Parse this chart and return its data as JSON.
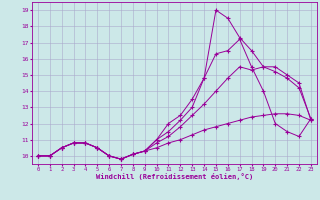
{
  "xlabel": "Windchill (Refroidissement éolien,°C)",
  "bg_color": "#cce8e8",
  "grid_color": "#aaaacc",
  "line_color": "#990099",
  "xlim": [
    -0.5,
    23.5
  ],
  "ylim": [
    9.5,
    19.5
  ],
  "yticks": [
    10,
    11,
    12,
    13,
    14,
    15,
    16,
    17,
    18,
    19
  ],
  "xticks": [
    0,
    1,
    2,
    3,
    4,
    5,
    6,
    7,
    8,
    9,
    10,
    11,
    12,
    13,
    14,
    15,
    16,
    17,
    18,
    19,
    20,
    21,
    22,
    23
  ],
  "lines": [
    {
      "x": [
        0,
        1,
        2,
        3,
        4,
        5,
        6,
        7,
        8,
        9,
        10,
        11,
        12,
        13,
        14,
        15,
        16,
        17,
        18,
        19,
        20,
        21,
        22,
        23
      ],
      "y": [
        10.0,
        10.0,
        10.5,
        10.8,
        10.8,
        10.5,
        10.0,
        9.8,
        10.1,
        10.3,
        11.0,
        11.5,
        12.2,
        13.0,
        14.8,
        19.0,
        18.5,
        17.3,
        16.5,
        15.5,
        15.2,
        14.8,
        14.2,
        12.3
      ]
    },
    {
      "x": [
        0,
        1,
        2,
        3,
        4,
        5,
        6,
        7,
        8,
        9,
        10,
        11,
        12,
        13,
        14,
        15,
        16,
        17,
        18,
        19,
        20,
        21,
        22,
        23
      ],
      "y": [
        10.0,
        10.0,
        10.5,
        10.8,
        10.8,
        10.5,
        10.0,
        9.8,
        10.1,
        10.3,
        11.0,
        12.0,
        12.5,
        13.5,
        14.8,
        16.3,
        16.5,
        17.2,
        15.5,
        14.0,
        12.0,
        11.5,
        11.2,
        12.3
      ]
    },
    {
      "x": [
        0,
        1,
        2,
        3,
        4,
        5,
        6,
        7,
        8,
        9,
        10,
        11,
        12,
        13,
        14,
        15,
        16,
        17,
        18,
        19,
        20,
        21,
        22,
        23
      ],
      "y": [
        10.0,
        10.0,
        10.5,
        10.8,
        10.8,
        10.5,
        10.0,
        9.8,
        10.1,
        10.3,
        10.8,
        11.2,
        11.8,
        12.5,
        13.2,
        14.0,
        14.8,
        15.5,
        15.3,
        15.5,
        15.5,
        15.0,
        14.5,
        12.2
      ]
    },
    {
      "x": [
        0,
        1,
        2,
        3,
        4,
        5,
        6,
        7,
        8,
        9,
        10,
        11,
        12,
        13,
        14,
        15,
        16,
        17,
        18,
        19,
        20,
        21,
        22,
        23
      ],
      "y": [
        10.0,
        10.0,
        10.5,
        10.8,
        10.8,
        10.5,
        10.0,
        9.8,
        10.1,
        10.3,
        10.5,
        10.8,
        11.0,
        11.3,
        11.6,
        11.8,
        12.0,
        12.2,
        12.4,
        12.5,
        12.6,
        12.6,
        12.5,
        12.2
      ]
    }
  ]
}
